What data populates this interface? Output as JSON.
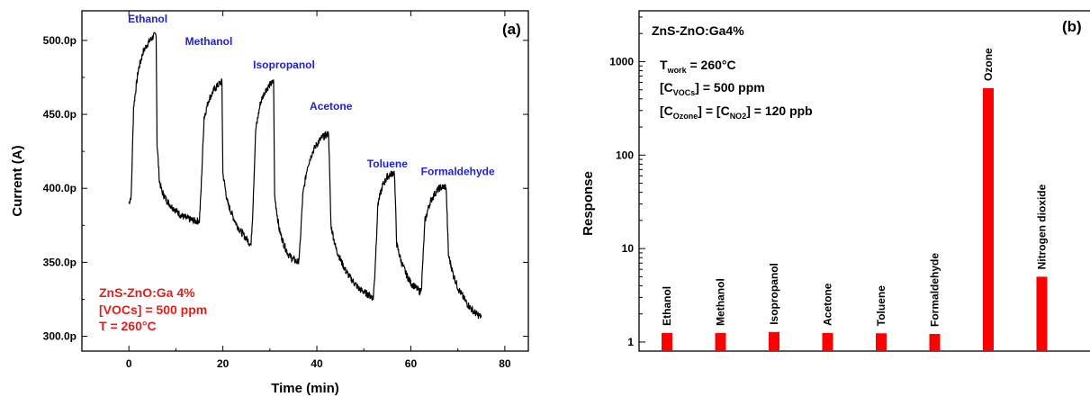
{
  "colors": {
    "line": "#000000",
    "bar": "#ff0000",
    "blue_label": "#1f1fd4",
    "red_label": "#e0201a"
  },
  "chart_data": [
    {
      "type": "line",
      "panel_label": "(a)",
      "xlabel": "Time (min)",
      "ylabel": "Current (A)",
      "xlim": [
        -10,
        85
      ],
      "ylim": [
        290,
        520
      ],
      "x_ticks": [
        0,
        20,
        40,
        60,
        80
      ],
      "x_tick_labels": [
        "0",
        "20",
        "40",
        "60",
        "80"
      ],
      "y_ticks": [
        300,
        350,
        400,
        450,
        500
      ],
      "y_tick_labels": [
        "300.0p",
        "350.0p",
        "400.0p",
        "450.0p",
        "500.0p"
      ],
      "series": [
        {
          "x": [
            0,
            0.5,
            1,
            2,
            3,
            4,
            5,
            5.8,
            6,
            6.5,
            7,
            8,
            9,
            10,
            11,
            12,
            13,
            14,
            15,
            15.3,
            16,
            17,
            18,
            19,
            19.8,
            20,
            21,
            22,
            23,
            24,
            25,
            26,
            26.3,
            27,
            28,
            29,
            30,
            30.8,
            31,
            32,
            33,
            34,
            35,
            36,
            36.3,
            37,
            38,
            39,
            40,
            41,
            42,
            42.5,
            43,
            44,
            45,
            46,
            47,
            48,
            49,
            50,
            51,
            52,
            52.3,
            53,
            54,
            55,
            56,
            56.5,
            57,
            58,
            59,
            60,
            61,
            62,
            62.3,
            63,
            64,
            65,
            66,
            67,
            67.5,
            68,
            69,
            70,
            71,
            72,
            73,
            74,
            75
          ],
          "y": [
            390,
            395,
            455,
            480,
            492,
            498,
            502,
            504,
            430,
            405,
            398,
            392,
            388,
            385,
            382,
            380,
            379,
            378,
            378,
            395,
            448,
            460,
            466,
            470,
            472,
            410,
            390,
            382,
            375,
            370,
            366,
            362,
            380,
            440,
            458,
            466,
            470,
            472,
            395,
            372,
            362,
            355,
            352,
            350,
            355,
            395,
            415,
            424,
            430,
            434,
            436,
            437,
            375,
            360,
            352,
            345,
            340,
            336,
            332,
            330,
            328,
            326,
            340,
            390,
            402,
            408,
            410,
            411,
            362,
            350,
            342,
            336,
            333,
            330,
            335,
            378,
            390,
            396,
            400,
            401,
            401,
            355,
            342,
            333,
            327,
            322,
            318,
            315,
            313
          ]
        }
      ],
      "annotations": [
        {
          "text": "Ethanol",
          "x": 4,
          "y": 512
        },
        {
          "text": "Methanol",
          "x": 17,
          "y": 497
        },
        {
          "text": "Isopropanol",
          "x": 33,
          "y": 481
        },
        {
          "text": "Acetone",
          "x": 43,
          "y": 453
        },
        {
          "text": "Toluene",
          "x": 55,
          "y": 414
        },
        {
          "text": "Formaldehyde",
          "x": 70,
          "y": 409
        }
      ],
      "legend_text": [
        "ZnS-ZnO:Ga 4%",
        "[VOCs] = 500 ppm",
        "T = 260°C"
      ]
    },
    {
      "type": "bar",
      "panel_label": "(b)",
      "xlabel": "",
      "ylabel": "Response",
      "y_scale": "log",
      "ylim": [
        0.8,
        3500
      ],
      "y_ticks": [
        1,
        10,
        100,
        1000
      ],
      "y_tick_labels": [
        "1",
        "10",
        "100",
        "1000"
      ],
      "categories": [
        "Ethanol",
        "Methanol",
        "Isopropanol",
        "Acetone",
        "Toluene",
        "Formaldehyde",
        "Ozone",
        "Nitrogen dioxide"
      ],
      "values": [
        1.25,
        1.25,
        1.28,
        1.25,
        1.24,
        1.22,
        520,
        5
      ],
      "info": {
        "title": "ZnS-ZnO:Ga4%",
        "line1_main": "T",
        "line1_sub": "work",
        "line1_rest": " = 260°C",
        "line2_pre": "[C",
        "line2_sub": "VOCs",
        "line2_rest": "] = 500 ppm",
        "line3_pre": "[C",
        "line3_sub": "Ozone",
        "line3_mid": "] = [C",
        "line3_sub2": "NO2",
        "line3_rest": "] = 120 ppb"
      }
    }
  ]
}
